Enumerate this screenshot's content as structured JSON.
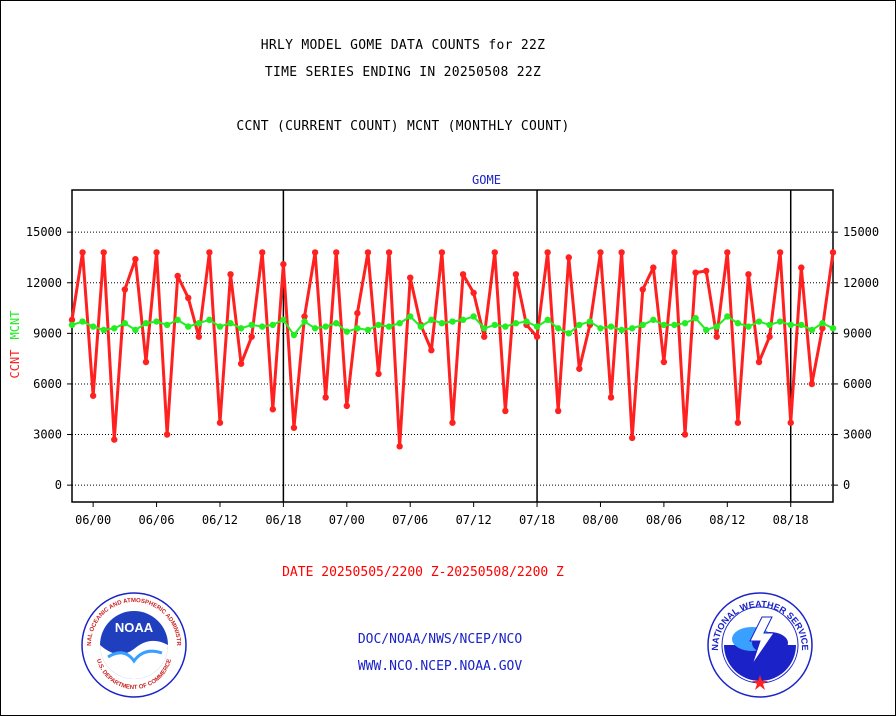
{
  "header": {
    "line1": "HRLY MODEL GOME DATA COUNTS for 22Z",
    "line2": "TIME SERIES ENDING IN 20250508 22Z",
    "line3": "CCNT (CURRENT COUNT) MCNT (MONTHLY COUNT)"
  },
  "footer": {
    "date_range": "DATE 20250505/2200 Z-20250508/2200 Z",
    "link1": "DOC/NOAA/NWS/NCEP/NCO",
    "link2": "WWW.NCO.NCEP.NOAA.GOV"
  },
  "logos": {
    "noaa_text": "NOAA",
    "noaa_ring_top": "NATIONAL OCEANIC AND ATMOSPHERIC ADMINISTRATION",
    "noaa_ring_bottom": "U.S. DEPARTMENT OF COMMERCE",
    "nws_ring": "NATIONAL WEATHER SERVICE"
  },
  "colors": {
    "ccnt": "#ff2020",
    "mcnt": "#22ee22",
    "title_blue": "#1a22c8",
    "axis": "#000000"
  },
  "chart_data": {
    "type": "line",
    "title": "GOME",
    "ylabel_left_ccnt": "CCNT",
    "ylabel_left_mcnt": "MCNT",
    "ylim": [
      -1000,
      17500
    ],
    "yticks": [
      0,
      3000,
      6000,
      9000,
      12000,
      15000
    ],
    "x_tick_labels": [
      "06/00",
      "06/06",
      "06/12",
      "06/18",
      "07/00",
      "07/06",
      "07/12",
      "07/18",
      "08/00",
      "08/06",
      "08/12",
      "08/18"
    ],
    "x_tick_hours": [
      2,
      8,
      14,
      20,
      26,
      32,
      38,
      44,
      50,
      56,
      62,
      68
    ],
    "x_range_hours": [
      0,
      72
    ],
    "day_boundaries_hours": [
      20,
      44,
      68
    ],
    "x_hours": [
      0,
      1,
      2,
      3,
      4,
      5,
      6,
      7,
      8,
      9,
      10,
      11,
      12,
      13,
      14,
      15,
      16,
      17,
      18,
      19,
      20,
      21,
      22,
      23,
      24,
      25,
      26,
      27,
      28,
      29,
      30,
      31,
      32,
      33,
      34,
      35,
      36,
      37,
      38,
      39,
      40,
      41,
      42,
      43,
      44,
      45,
      46,
      47,
      48,
      49,
      50,
      51,
      52,
      53,
      54,
      55,
      56,
      57,
      58,
      59,
      60,
      61,
      62,
      63,
      64,
      65,
      66,
      67,
      68,
      69,
      70,
      71,
      72
    ],
    "grid": true,
    "series": [
      {
        "name": "CCNT",
        "color": "#ff2020",
        "values": [
          9800,
          13800,
          5300,
          13800,
          2700,
          11600,
          13400,
          7300,
          13800,
          3000,
          12400,
          11100,
          8800,
          13800,
          3700,
          12500,
          7200,
          8800,
          13800,
          4500,
          13100,
          3400,
          10000,
          13800,
          5200,
          13800,
          4700,
          10200,
          13800,
          6600,
          13800,
          2300,
          12300,
          9500,
          8000,
          13800,
          3700,
          12500,
          11400,
          8800,
          13800,
          4400,
          12500,
          9500,
          8800,
          13800,
          4400,
          13500,
          6900,
          9500,
          13800,
          5200,
          13800,
          2800,
          11600,
          12900,
          7300,
          13800,
          3000,
          12600,
          12700,
          8800,
          13800,
          3700,
          12500,
          7300,
          8800,
          13800,
          3700,
          12900,
          6000,
          9300,
          13800
        ]
      },
      {
        "name": "MCNT",
        "color": "#22ee22",
        "values": [
          9500,
          9700,
          9400,
          9200,
          9300,
          9600,
          9200,
          9600,
          9700,
          9500,
          9800,
          9400,
          9600,
          9800,
          9400,
          9600,
          9300,
          9500,
          9400,
          9500,
          9800,
          8900,
          9700,
          9300,
          9400,
          9600,
          9100,
          9300,
          9200,
          9500,
          9400,
          9600,
          10000,
          9400,
          9800,
          9600,
          9700,
          9800,
          10000,
          9300,
          9500,
          9400,
          9600,
          9700,
          9400,
          9800,
          9300,
          9000,
          9500,
          9700,
          9300,
          9400,
          9200,
          9300,
          9500,
          9800,
          9500,
          9500,
          9600,
          9900,
          9200,
          9400,
          10000,
          9600,
          9400,
          9700,
          9500,
          9700,
          9500,
          9500,
          9200,
          9600,
          9300
        ]
      }
    ]
  }
}
